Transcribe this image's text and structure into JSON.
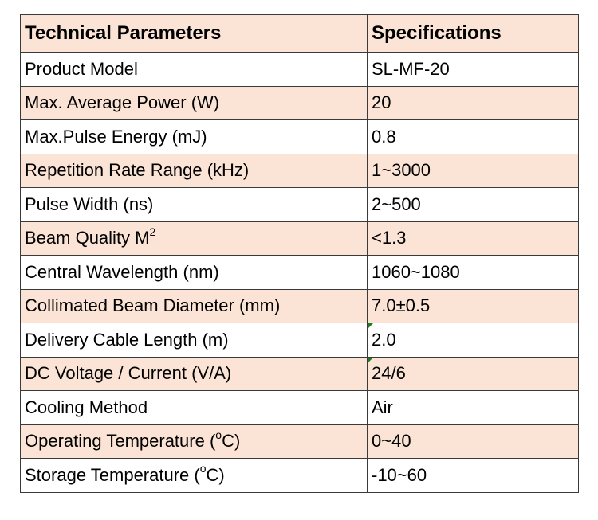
{
  "table": {
    "headers": {
      "parameter": "Technical Parameters",
      "specification": "Specifications"
    },
    "rows": [
      {
        "parameter": "Product Model",
        "sup": "",
        "unit": "",
        "value": "SL-MF-20",
        "marker": false
      },
      {
        "parameter": "Max. Average Power (W)",
        "sup": "",
        "unit": "",
        "value": "20",
        "marker": false
      },
      {
        "parameter": "Max.Pulse Energy (mJ)",
        "sup": "",
        "unit": "",
        "value": "0.8",
        "marker": false
      },
      {
        "parameter": "Repetition Rate Range (kHz)",
        "sup": "",
        "unit": "",
        "value": "1~3000",
        "marker": false
      },
      {
        "parameter": "Pulse Width (ns)",
        "sup": "",
        "unit": "",
        "value": "2~500",
        "marker": false
      },
      {
        "parameter": "Beam Quality M",
        "sup": "2",
        "unit": "",
        "value": "<1.3",
        "marker": false
      },
      {
        "parameter": "Central Wavelength (nm)",
        "sup": "",
        "unit": "",
        "value": "1060~1080",
        "marker": false
      },
      {
        "parameter": "Collimated Beam Diameter (mm)",
        "sup": "",
        "unit": "",
        "value": "7.0±0.5",
        "marker": false
      },
      {
        "parameter": "Delivery Cable Length (m)",
        "sup": "",
        "unit": "",
        "value": "2.0",
        "marker": true
      },
      {
        "parameter": "DC Voltage / Current (V/A)",
        "sup": "",
        "unit": "",
        "value": "24/6",
        "marker": true
      },
      {
        "parameter": "Cooling Method",
        "sup": "",
        "unit": "",
        "value": "Air",
        "marker": false
      },
      {
        "parameter": "Operating Temperature (",
        "sup": "o",
        "unit": "C)",
        "value": "0~40",
        "marker": false
      },
      {
        "parameter": "Storage Temperature (",
        "sup": "o",
        "unit": "C)",
        "value": "-10~60",
        "marker": false
      }
    ]
  },
  "colors": {
    "shaded_row": "#fbe4d5",
    "plain_row": "#ffffff",
    "border": "#3a3a3a",
    "cell_marker": "#1f7a1f"
  }
}
